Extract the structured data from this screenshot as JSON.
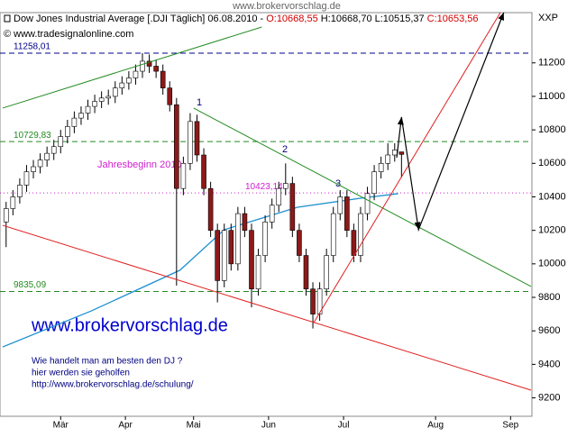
{
  "chart_data": {
    "type": "candlestick",
    "site": "www.brokervorschlag.de",
    "title": "Dow Jones Industrial Average [.DJI  Täglich] 06.08.2010 -",
    "ohlc_labels": [
      {
        "label": "O:10668,55",
        "color": "#d00000"
      },
      {
        "label": "H:10668,70",
        "color": "#000000"
      },
      {
        "label": "L:10515,37",
        "color": "#000000"
      },
      {
        "label": "C:10653,56",
        "color": "#d00000"
      }
    ],
    "copyright": "© www.tradesignalonline.com",
    "axis_name": "XXP",
    "brand": "www.brokervorschlag.de",
    "notes": [
      "Wie handelt man am besten  den DJ ?",
      "hier werden sie geholfen",
      "http://www.brokervorschlag.de/schulung/"
    ],
    "points": [
      "1",
      "2",
      "3"
    ],
    "x": [
      1,
      3,
      5,
      7,
      9,
      11,
      13,
      15,
      17,
      19,
      21,
      23,
      25,
      27,
      29,
      31,
      33,
      35,
      37,
      39,
      41,
      43,
      45,
      47,
      49,
      51,
      53,
      55,
      57,
      59,
      61,
      63,
      65,
      67,
      69,
      71,
      73,
      75,
      77,
      79,
      81,
      83,
      85,
      87,
      89,
      91,
      93,
      95,
      97,
      99,
      101,
      103,
      105,
      107,
      109,
      111,
      113,
      115,
      117
    ],
    "open": [
      10250,
      10330,
      10400,
      10470,
      10550,
      10580,
      10620,
      10660,
      10700,
      10760,
      10820,
      10870,
      10900,
      10940,
      10970,
      10990,
      11000,
      11050,
      11080,
      11110,
      11150,
      11210,
      11180,
      11150,
      11050,
      10950,
      10450,
      10600,
      10850,
      10650,
      10450,
      10200,
      9900,
      10200,
      10000,
      10300,
      10200,
      9850,
      10050,
      10250,
      10350,
      10450,
      10480,
      10200,
      10050,
      9850,
      9700,
      9850,
      10050,
      10300,
      10400,
      10200,
      10050,
      10300,
      10420,
      10550,
      10600,
      10650,
      10668.55
    ],
    "high": [
      10370,
      10440,
      10510,
      10590,
      10620,
      10660,
      10700,
      10740,
      10800,
      10860,
      10910,
      10940,
      10980,
      11010,
      11030,
      11040,
      11090,
      11120,
      11150,
      11190,
      11258.01,
      11250,
      11220,
      11190,
      11090,
      10990,
      10640,
      10900,
      10890,
      10690,
      10490,
      10240,
      10240,
      10240,
      10340,
      10340,
      10240,
      10090,
      10290,
      10390,
      10490,
      10600,
      10520,
      10240,
      10090,
      9890,
      9890,
      10090,
      10340,
      10440,
      10440,
      10240,
      10340,
      10460,
      10590,
      10640,
      10720,
      10720,
      10668.7
    ],
    "low": [
      10100,
      10290,
      10360,
      10430,
      10510,
      10540,
      10580,
      10620,
      10660,
      10720,
      10780,
      10830,
      10860,
      10900,
      10930,
      10950,
      10960,
      11010,
      11040,
      11070,
      11110,
      11140,
      11110,
      11010,
      10910,
      9870,
      10410,
      10560,
      10610,
      10410,
      10160,
      9770,
      9860,
      9960,
      9960,
      10160,
      9740,
      9810,
      10010,
      10210,
      10310,
      10410,
      10160,
      10010,
      9810,
      9614,
      9660,
      9810,
      10010,
      10260,
      10160,
      10010,
      10010,
      10260,
      10380,
      10510,
      10560,
      10610,
      10515.37
    ],
    "close": [
      10330,
      10400,
      10470,
      10550,
      10580,
      10620,
      10660,
      10700,
      10760,
      10820,
      10870,
      10900,
      10940,
      10970,
      10990,
      11000,
      11050,
      11080,
      11110,
      11150,
      11210,
      11180,
      11150,
      11050,
      10950,
      10450,
      10600,
      10850,
      10650,
      10450,
      10200,
      9900,
      10200,
      10000,
      10300,
      10200,
      9850,
      10050,
      10250,
      10350,
      10450,
      10480,
      10200,
      10050,
      9850,
      9700,
      9850,
      10050,
      10300,
      10400,
      10200,
      10050,
      10300,
      10420,
      10550,
      10600,
      10650,
      10680,
      10653.56
    ],
    "up_color": "#ffffff",
    "down_color": "#8b1a1a",
    "wick_color": "#000000",
    "xlim": [
      0,
      155
    ],
    "ylim": [
      9090,
      11500
    ],
    "yticks": [
      9200,
      9400,
      9600,
      9800,
      10000,
      10200,
      10400,
      10600,
      10800,
      11000,
      11200
    ],
    "xticks": [
      {
        "value": 17,
        "label": "Mär"
      },
      {
        "value": 36,
        "label": "Apr"
      },
      {
        "value": 56,
        "label": "Mai"
      },
      {
        "value": 78,
        "label": "Jun"
      },
      {
        "value": 100,
        "label": "Jul"
      },
      {
        "value": 127,
        "label": "Aug"
      },
      {
        "value": 149,
        "label": "Sep"
      }
    ],
    "ma": {
      "color": "#1e90d0",
      "x": [
        0,
        26,
        52,
        65,
        86.5,
        105,
        116
      ],
      "values": [
        9504,
        9719,
        9962,
        10204,
        10338,
        10392,
        10419
      ]
    },
    "trendlines": [
      {
        "color": "#228b22",
        "x": [
          0,
          76
        ],
        "y": [
          10930,
          11414
        ]
      },
      {
        "color": "#e02020",
        "x": [
          0,
          155
        ],
        "y": [
          10230,
          9246
        ]
      },
      {
        "color": "#228b22",
        "x": [
          56,
          155
        ],
        "y": [
          10930,
          9865
        ]
      },
      {
        "color": "#e02020",
        "x": [
          91.3,
          146
        ],
        "y": [
          9650,
          11500
        ]
      }
    ],
    "arrow": {
      "color": "#000000",
      "x": [
        115.6,
        117,
        122,
        147
      ],
      "y": [
        10634,
        10876,
        10204,
        11500
      ]
    },
    "levels": [
      {
        "value": 11258.01,
        "label": "11258,01",
        "color": "#00008b",
        "dash": "6,4"
      },
      {
        "value": 10729.83,
        "label": "10729,83",
        "color": "#228b22",
        "dash": "6,4"
      },
      {
        "value": 10423.14,
        "label": "10423,14",
        "color": "#d020d0",
        "dash": "1,3"
      },
      {
        "value": 9835.09,
        "label": "9835,09",
        "color": "#228b22",
        "dash": "6,4"
      }
    ],
    "level_note": "Jahresbeginn 2010"
  }
}
